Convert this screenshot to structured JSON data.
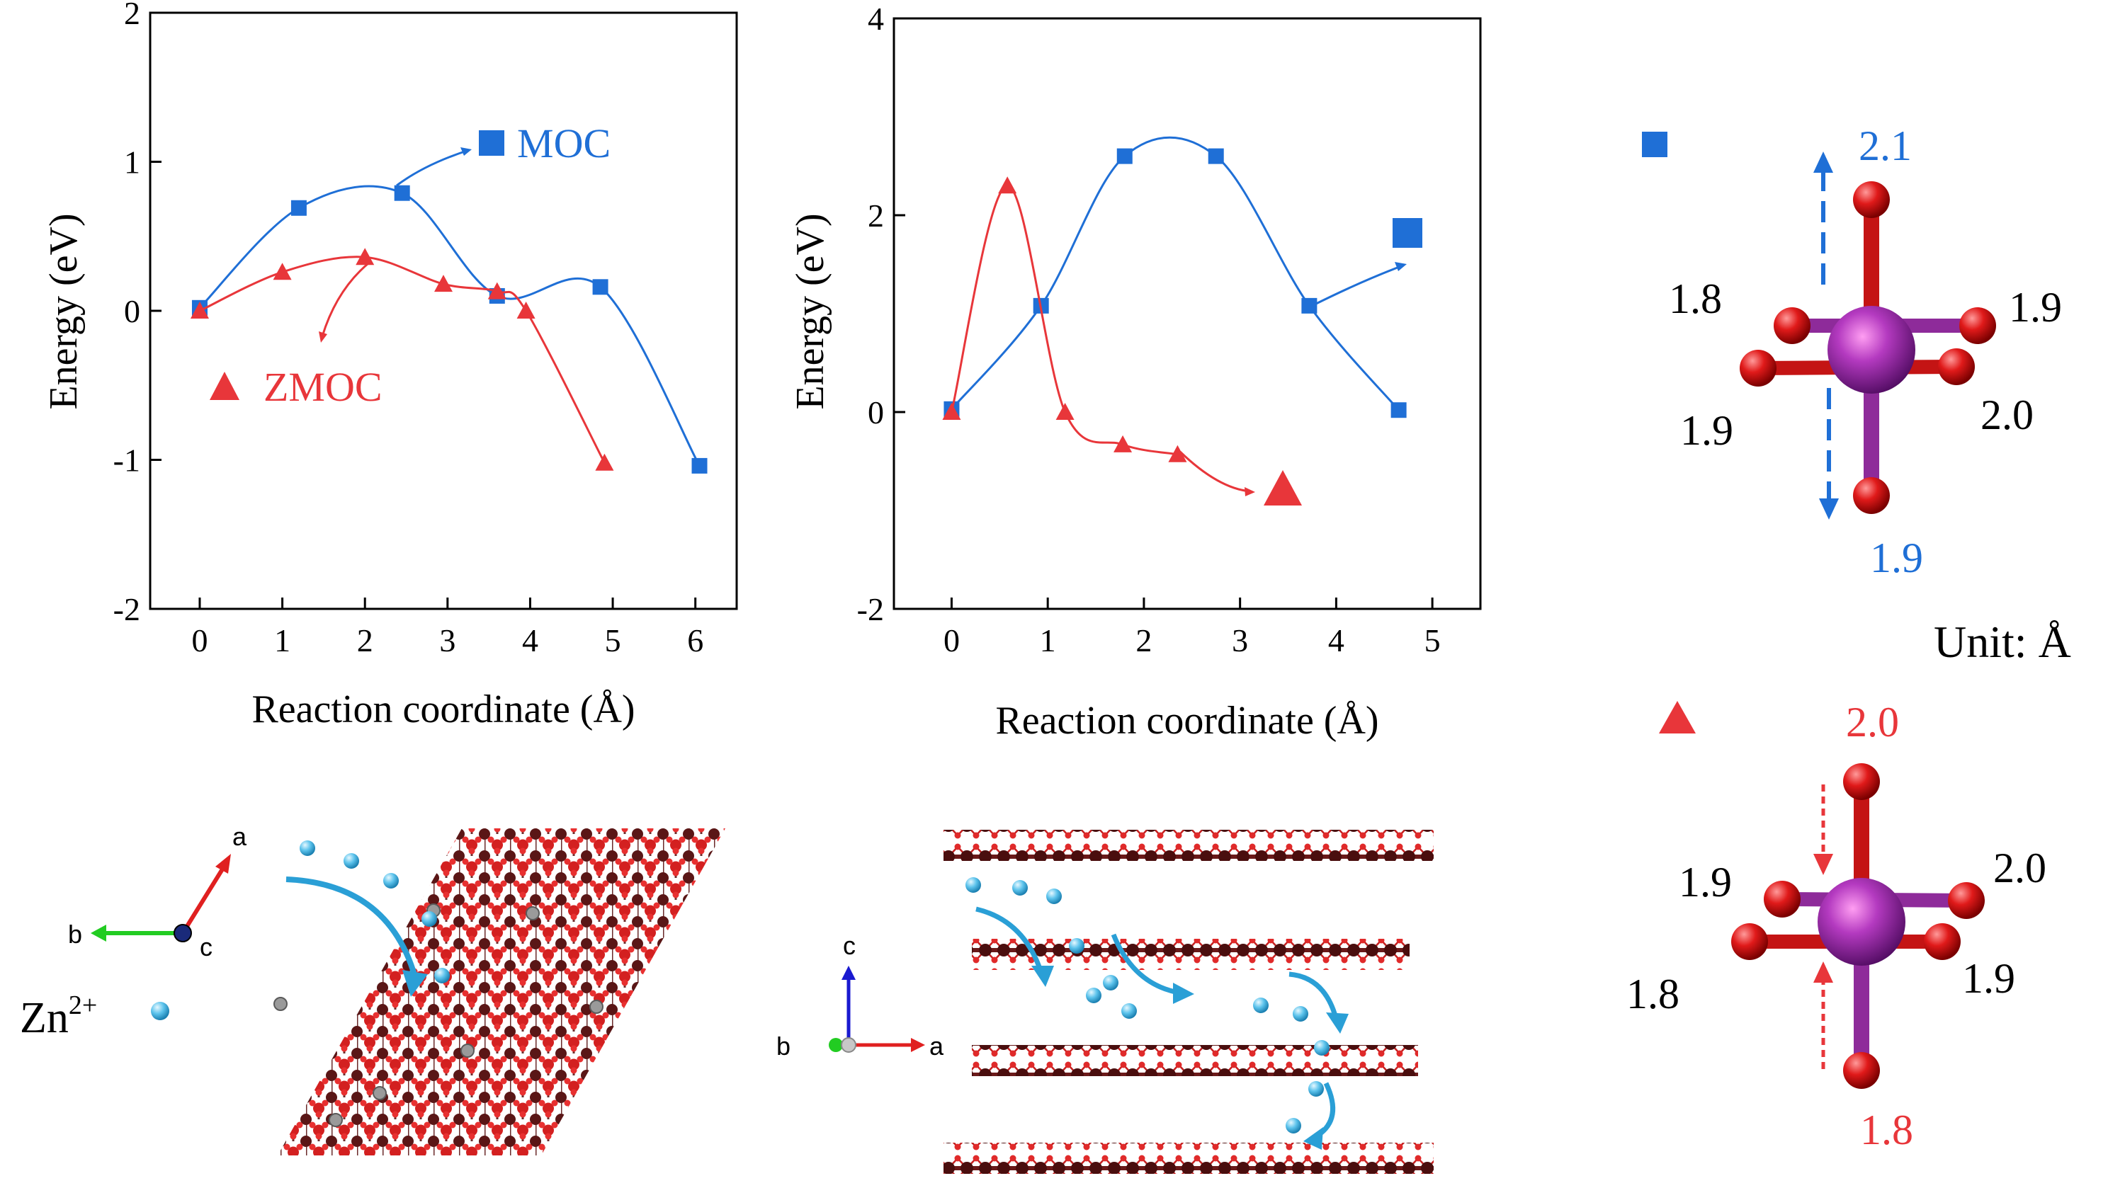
{
  "chart_data": [
    {
      "type": "line",
      "xlabel": "Reaction coordinate (Å)",
      "ylabel": "Energy (eV)",
      "xlim": [
        -0.6,
        6.5
      ],
      "ylim": [
        -2,
        2
      ],
      "xticks": [
        "0",
        "1",
        "2",
        "3",
        "4",
        "5",
        "6"
      ],
      "yticks": [
        "2",
        "1",
        "0",
        "-1",
        "-2"
      ],
      "grid": false,
      "legend_position": "inline annotations",
      "series": [
        {
          "name": "MOC",
          "color": "#1f6fd6",
          "marker": "square",
          "x": [
            0,
            1.2,
            2.45,
            3.6,
            4.85,
            6.05
          ],
          "y": [
            0.02,
            0.69,
            0.79,
            0.1,
            0.16,
            -1.04
          ]
        },
        {
          "name": "ZMOC",
          "color": "#e8363a",
          "marker": "triangle",
          "x": [
            0,
            1,
            2,
            2.95,
            3.6,
            3.95,
            4.9
          ],
          "y": [
            0.0,
            0.26,
            0.36,
            0.18,
            0.13,
            0.0,
            -1.02
          ]
        }
      ]
    },
    {
      "type": "line",
      "xlabel": "Reaction coordinate (Å)",
      "ylabel": "Energy (eV)",
      "xlim": [
        -0.6,
        5.5
      ],
      "ylim": [
        -2,
        4
      ],
      "xticks": [
        "0",
        "1",
        "2",
        "3",
        "4",
        "5"
      ],
      "yticks": [
        "4",
        "2",
        "0",
        "-2"
      ],
      "grid": false,
      "legend_position": "inline markers",
      "series": [
        {
          "name": "",
          "color": "#1f6fd6",
          "marker": "square",
          "x": [
            0,
            0.93,
            1.8,
            2.75,
            3.72,
            4.65
          ],
          "y": [
            0.03,
            1.08,
            2.6,
            2.6,
            1.08,
            0.02
          ]
        },
        {
          "name": "",
          "color": "#e8363a",
          "marker": "triangle",
          "x": [
            0,
            0.58,
            1.18,
            1.78,
            2.35
          ],
          "y": [
            0.0,
            2.3,
            0.0,
            -0.33,
            -0.43
          ]
        }
      ]
    }
  ],
  "panel_a": {
    "legend": {
      "moc": "MOC",
      "zmoc": "ZMOC"
    },
    "axes_labels": {
      "a": "a",
      "b": "b",
      "c": "c"
    },
    "ion_label": "Zn",
    "ion_charge": "2+"
  },
  "panel_b": {
    "axes_labels": {
      "a": "a",
      "b": "b",
      "c": "c"
    }
  },
  "panel_c": {
    "unit": "Unit: Å",
    "top": {
      "up": "2.1",
      "down": "1.9",
      "upper_left": "1.8",
      "upper_right": "1.9",
      "lower_left": "1.9",
      "lower_right": "2.0"
    },
    "bottom": {
      "up": "2.0",
      "down": "1.8",
      "upper_left": "1.9",
      "upper_right": "2.0",
      "lower_left": "1.8",
      "lower_right": "1.9"
    }
  },
  "colors": {
    "blue": "#1f6fd6",
    "red": "#e8363a",
    "arrow_cyan": "#2a9fd6",
    "bond_purple": "#8e2b9a"
  }
}
